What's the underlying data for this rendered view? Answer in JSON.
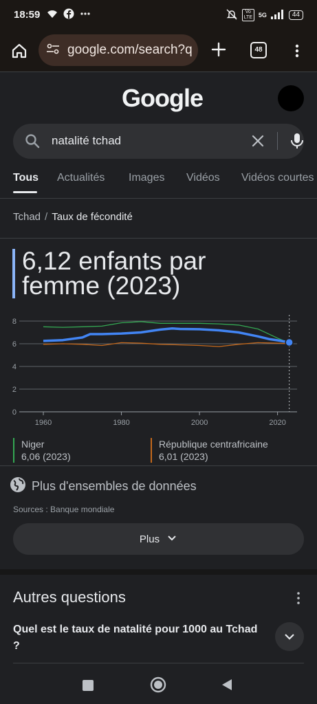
{
  "status_bar": {
    "time": "18:59",
    "network": "5G",
    "volte": "Vo LTE",
    "battery": "44"
  },
  "browser": {
    "url": "google.com/search?q",
    "tab_count": "48"
  },
  "search": {
    "logo": "Google",
    "query": "natalité tchad"
  },
  "tabs": [
    {
      "label": "Tous",
      "active": true
    },
    {
      "label": "Actualités"
    },
    {
      "label": "Images"
    },
    {
      "label": "Vidéos"
    },
    {
      "label": "Vidéos courtes"
    }
  ],
  "breadcrumb": {
    "parent": "Tchad",
    "separator": "/",
    "current": "Taux de fécondité"
  },
  "headline": {
    "value": "6,12 enfants par femme (2023)"
  },
  "chart_data": {
    "type": "line",
    "xlim": [
      1957,
      2025
    ],
    "ylim": [
      0,
      8
    ],
    "x_ticks": [
      "1960",
      "1980",
      "2000",
      "2020"
    ],
    "y_ticks": [
      "0",
      "2",
      "4",
      "6",
      "8"
    ],
    "grid": true,
    "series": [
      {
        "name": "Tchad",
        "color": "#4285f4",
        "points": [
          [
            1960,
            6.25
          ],
          [
            1965,
            6.32
          ],
          [
            1970,
            6.55
          ],
          [
            1972,
            6.85
          ],
          [
            1975,
            6.85
          ],
          [
            1980,
            6.9
          ],
          [
            1985,
            7.0
          ],
          [
            1990,
            7.25
          ],
          [
            1993,
            7.35
          ],
          [
            1995,
            7.3
          ],
          [
            2000,
            7.28
          ],
          [
            2005,
            7.18
          ],
          [
            2010,
            7.0
          ],
          [
            2015,
            6.65
          ],
          [
            2018,
            6.4
          ],
          [
            2020,
            6.3
          ],
          [
            2023,
            6.12
          ]
        ]
      },
      {
        "name": "Niger",
        "color": "#34a853",
        "points": [
          [
            1960,
            7.5
          ],
          [
            1965,
            7.45
          ],
          [
            1970,
            7.5
          ],
          [
            1975,
            7.55
          ],
          [
            1980,
            7.85
          ],
          [
            1985,
            7.95
          ],
          [
            1990,
            7.8
          ],
          [
            1995,
            7.8
          ],
          [
            2000,
            7.8
          ],
          [
            2005,
            7.75
          ],
          [
            2010,
            7.65
          ],
          [
            2015,
            7.3
          ],
          [
            2020,
            6.5
          ],
          [
            2023,
            6.06
          ]
        ]
      },
      {
        "name": "République centrafricaine",
        "color": "#c5691c",
        "points": [
          [
            1960,
            5.95
          ],
          [
            1965,
            6.0
          ],
          [
            1970,
            5.95
          ],
          [
            1975,
            5.85
          ],
          [
            1980,
            6.1
          ],
          [
            1985,
            6.05
          ],
          [
            1990,
            5.95
          ],
          [
            1995,
            5.9
          ],
          [
            2000,
            5.85
          ],
          [
            2005,
            5.75
          ],
          [
            2010,
            5.95
          ],
          [
            2015,
            6.1
          ],
          [
            2020,
            6.05
          ],
          [
            2023,
            6.01
          ]
        ]
      }
    ],
    "legend": [
      {
        "name": "Niger",
        "value": "6,06 (2023)",
        "color": "#34a853"
      },
      {
        "name": "République centrafricaine",
        "value": "6,01 (2023)",
        "color": "#c5691c"
      }
    ]
  },
  "more_datasets": {
    "label": "Plus d'ensembles de données",
    "sources": "Sources : Banque mondiale",
    "plus_button": "Plus"
  },
  "related": {
    "title": "Autres questions",
    "questions": [
      "Quel est le taux de natalité pour 1000 au Tchad ?"
    ]
  },
  "icons": [
    "wifi-icon",
    "facebook-icon",
    "more-icon",
    "mute-icon",
    "signal-icon",
    "battery-icon",
    "home-icon",
    "site-settings-icon",
    "plus-icon",
    "tabs-icon",
    "menu-icon",
    "search-icon",
    "clear-icon",
    "mic-icon",
    "globe-icon",
    "chevron-down-icon",
    "stop-icon",
    "home-nav-icon",
    "back-icon"
  ]
}
